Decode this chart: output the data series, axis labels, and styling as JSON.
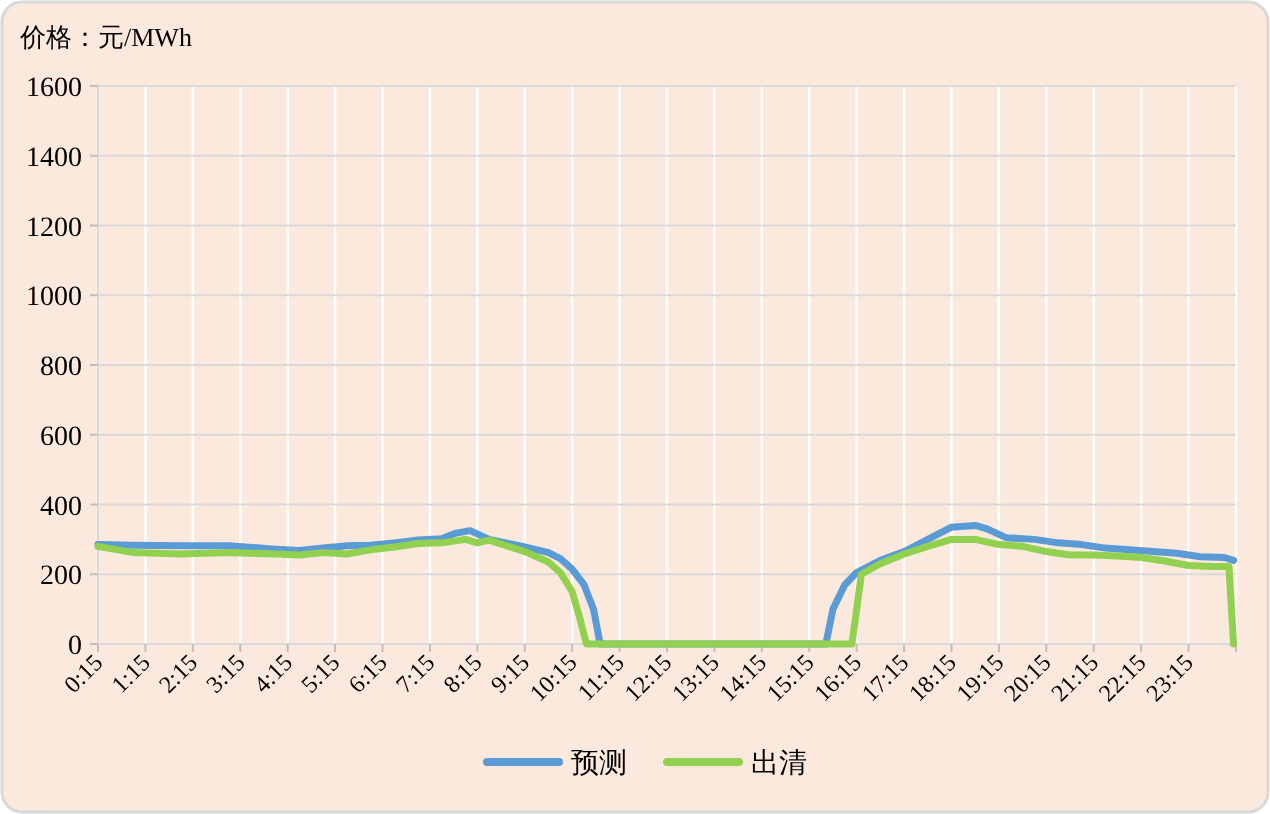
{
  "chart_data": {
    "type": "line",
    "ylabel": "价格：元/MWh",
    "xlim": [
      0.25,
      24.25
    ],
    "ylim": [
      0,
      1600
    ],
    "yticks": [
      0,
      200,
      400,
      600,
      800,
      1000,
      1200,
      1400,
      1600
    ],
    "xticks": [
      {
        "value": 0.25,
        "label": "0:15"
      },
      {
        "value": 1.25,
        "label": "1:15"
      },
      {
        "value": 2.25,
        "label": "2:15"
      },
      {
        "value": 3.25,
        "label": "3:15"
      },
      {
        "value": 4.25,
        "label": "4:15"
      },
      {
        "value": 5.25,
        "label": "5:15"
      },
      {
        "value": 6.25,
        "label": "6:15"
      },
      {
        "value": 7.25,
        "label": "7:15"
      },
      {
        "value": 8.25,
        "label": "8:15"
      },
      {
        "value": 9.25,
        "label": "9:15"
      },
      {
        "value": 10.25,
        "label": "10:15"
      },
      {
        "value": 11.25,
        "label": "11:15"
      },
      {
        "value": 12.25,
        "label": "12:15"
      },
      {
        "value": 13.25,
        "label": "13:15"
      },
      {
        "value": 14.25,
        "label": "14:15"
      },
      {
        "value": 15.25,
        "label": "15:15"
      },
      {
        "value": 16.25,
        "label": "16:15"
      },
      {
        "value": 17.25,
        "label": "17:15"
      },
      {
        "value": 18.25,
        "label": "18:15"
      },
      {
        "value": 19.25,
        "label": "19:15"
      },
      {
        "value": 20.25,
        "label": "20:15"
      },
      {
        "value": 21.25,
        "label": "21:15"
      },
      {
        "value": 22.25,
        "label": "22:15"
      },
      {
        "value": 23.25,
        "label": "23:15"
      },
      {
        "value": 24.25,
        "label": null
      }
    ],
    "grid": true,
    "legend": "bottom",
    "marker": "none",
    "line_style": "solid",
    "series": [
      {
        "name": "预测",
        "color": "#5b9bd5",
        "x": [
          0.25,
          1,
          2,
          3,
          4,
          4.5,
          5,
          5.5,
          6,
          6.5,
          7,
          7.5,
          7.8,
          8.1,
          8.5,
          9.25,
          9.75,
          10,
          10.25,
          10.5,
          10.7,
          10.84,
          12,
          14,
          15.6,
          15.75,
          16,
          16.25,
          16.75,
          17.25,
          17.75,
          18.25,
          18.75,
          19,
          19.4,
          20,
          20.5,
          21,
          21.5,
          22,
          22.5,
          23,
          23.5,
          24,
          24.2
        ],
        "values": [
          285,
          283,
          282,
          282,
          272,
          268,
          275,
          282,
          283,
          290,
          298,
          302,
          318,
          325,
          300,
          278,
          262,
          245,
          215,
          170,
          100,
          0,
          0,
          0,
          0,
          100,
          170,
          205,
          240,
          265,
          300,
          335,
          340,
          330,
          305,
          300,
          290,
          285,
          275,
          270,
          265,
          260,
          250,
          248,
          240
        ]
      },
      {
        "name": "出清",
        "color": "#92d050",
        "x": [
          0.25,
          1,
          2,
          3,
          4,
          4.5,
          5,
          5.5,
          6,
          6.5,
          7,
          7.5,
          8,
          8.25,
          8.5,
          9.25,
          9.75,
          10,
          10.25,
          10.4,
          10.55,
          12,
          14,
          16.15,
          16.35,
          16.75,
          17.25,
          17.75,
          18.25,
          18.75,
          19.25,
          19.75,
          20.25,
          20.75,
          21.25,
          21.75,
          22.25,
          22.75,
          23.25,
          23.75,
          24.1,
          24.2
        ],
        "values": [
          280,
          262,
          258,
          262,
          258,
          255,
          262,
          258,
          270,
          278,
          288,
          290,
          300,
          290,
          298,
          265,
          235,
          205,
          150,
          80,
          0,
          0,
          0,
          0,
          200,
          230,
          258,
          280,
          300,
          300,
          285,
          280,
          265,
          255,
          255,
          252,
          248,
          238,
          225,
          222,
          222,
          0
        ]
      }
    ]
  }
}
